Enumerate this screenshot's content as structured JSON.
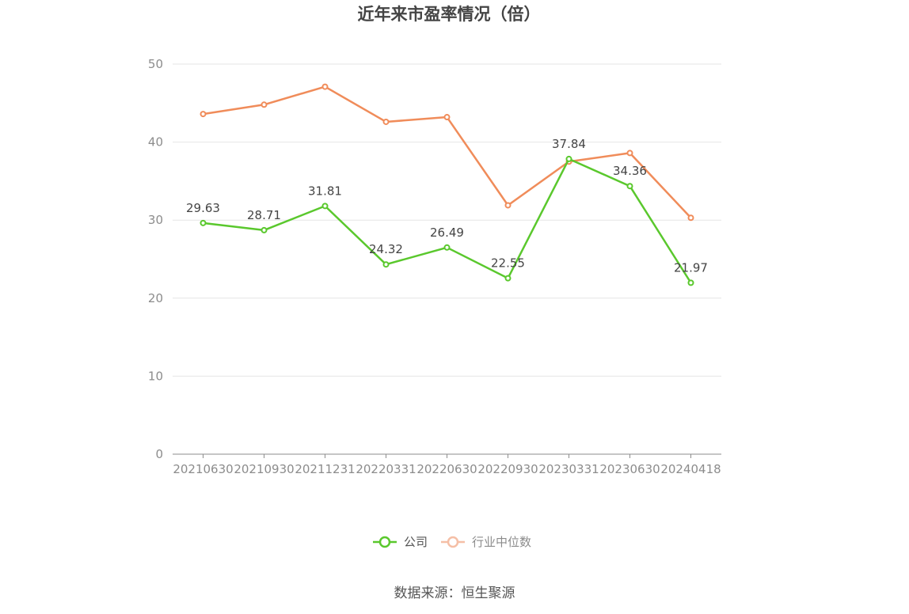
{
  "chart_data": {
    "type": "line",
    "title": "近年来市盈率情况（倍）",
    "categories": [
      "20210630",
      "20210930",
      "20211231",
      "20220331",
      "20220630",
      "20220930",
      "20230331",
      "20230630",
      "20240418"
    ],
    "series": [
      {
        "name": "公司",
        "values": [
          29.63,
          28.71,
          31.81,
          24.32,
          26.49,
          22.55,
          37.84,
          34.36,
          21.97
        ],
        "labels": [
          "29.63",
          "28.71",
          "31.81",
          "24.32",
          "26.49",
          "22.55",
          "37.84",
          "34.36",
          "21.97"
        ],
        "color": "#5ac82d"
      },
      {
        "name": "行业中位数",
        "values": [
          43.6,
          44.8,
          47.1,
          42.6,
          43.2,
          31.9,
          37.5,
          38.6,
          30.3
        ],
        "color": "#f08c5a"
      }
    ],
    "y_ticks": [
      "0",
      "10",
      "20",
      "30",
      "40",
      "50"
    ],
    "ylim": [
      0,
      50
    ],
    "grid": true,
    "legend_position": "bottom"
  },
  "source_text": "数据来源：恒生聚源"
}
